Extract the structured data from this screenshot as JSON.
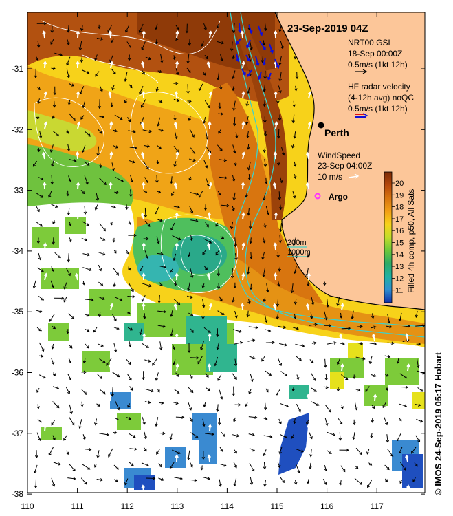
{
  "header": {
    "date_title": "23-Sep-2019 04Z"
  },
  "legend": {
    "gsl_line1": "NRT00 GSL",
    "gsl_line2": "18-Sep 00:00Z",
    "gsl_line3": "0.5m/s (1kt 12h)",
    "radar_line1": "HF radar velocity",
    "radar_line2": "(4-12h avg) noQC",
    "radar_line3": "0.5m/s (1kt 12h)",
    "wind_line1": "WindSpeed",
    "wind_line2": "23-Sep 04:00Z",
    "wind_line3": "10 m/s",
    "contour_200": "200m",
    "contour_1000": "1000m"
  },
  "places": {
    "perth": "Perth",
    "argo": "Argo"
  },
  "colorbar": {
    "title": "Filled 4h comp, p50, All Sats",
    "ticks": [
      "20",
      "19",
      "18",
      "17",
      "16",
      "15",
      "14",
      "13",
      "12",
      "11"
    ],
    "colors": [
      "#7a2a05",
      "#b5470b",
      "#d7740f",
      "#f29f15",
      "#f7d21a",
      "#c2dd2b",
      "#6dc83b",
      "#2daa66",
      "#20b1a3",
      "#2f8fd0",
      "#1f5dc7",
      "#102ea6"
    ]
  },
  "axes": {
    "lat_labels": [
      "-31",
      "-32",
      "-33",
      "-34",
      "-35",
      "-36",
      "-37",
      "-38"
    ],
    "lon_labels": [
      "110",
      "111",
      "112",
      "113",
      "114",
      "115",
      "116",
      "117"
    ]
  },
  "credit": "© IMOS 24-Sep-2019 05:17 Hobart",
  "colors": {
    "land": "#fcc699",
    "gsl_arrow": "#000000",
    "radar_arrow": "#1010d8",
    "radar_arrow_red": "#e01010",
    "wind_arrow": "#ffffff",
    "argo_marker": "#ff33ff",
    "contour_200": "#40d0c8"
  }
}
